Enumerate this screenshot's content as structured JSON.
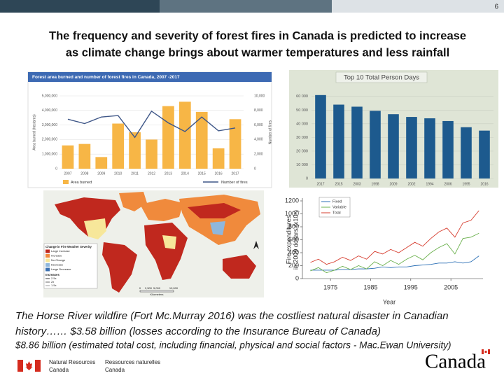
{
  "page_number": "6",
  "title": [
    "The frequency and severity of forest fires in Canada is predicted to increase",
    "as climate change brings about warmer temperatures and less rainfall"
  ],
  "charts": [
    {
      "type": "bar_line",
      "title": "Forest area burned and number of forest fires in Canada, 2007 -2017",
      "categories": [
        "2007",
        "2008",
        "2009",
        "2010",
        "2011",
        "2012",
        "2013",
        "2014",
        "2015",
        "2016",
        "2017"
      ],
      "y_label": "Area burned (hectares)",
      "y2_label": "Number of fires",
      "ylim": [
        0,
        5000000
      ],
      "yticks": [
        0,
        {
          "value": 1000000,
          "label": "1,000,000"
        },
        {
          "value": 2000000,
          "label": "2,000,000"
        },
        {
          "value": 3000000,
          "label": "3,000,000"
        },
        {
          "value": 4000000,
          "label": "4,000,000"
        },
        {
          "value": 5000000,
          "label": "5,000,000"
        }
      ],
      "y2lim": [
        0,
        10000
      ],
      "y2ticks": [
        0,
        {
          "value": 2000,
          "label": "2,000"
        },
        {
          "value": 4000,
          "label": "4,000"
        },
        {
          "value": 6000,
          "label": "6,000"
        },
        {
          "value": 8000,
          "label": "8,000"
        },
        {
          "value": 10000,
          "label": "10,000"
        }
      ],
      "series": [
        {
          "name": "Area burned",
          "type": "bar",
          "color": "#f7b646",
          "values": [
            1600000,
            1700000,
            800000,
            3100000,
            2500000,
            2000000,
            4300000,
            4600000,
            3900000,
            1400000,
            3400000
          ]
        },
        {
          "name": "Number of fires",
          "type": "line",
          "axis": "y2",
          "color": "#3e5687",
          "values": [
            6800,
            6200,
            7100,
            7300,
            4300,
            7900,
            6300,
            5100,
            7100,
            5200,
            5600
          ]
        }
      ]
    },
    {
      "type": "bar",
      "title": "Top 10 Total Person Days",
      "categories": [
        "2017",
        "2015",
        "2003",
        "1998",
        "2009",
        "2002",
        "1994",
        "2006",
        "1995",
        "2016"
      ],
      "values": [
        61000,
        54000,
        52500,
        49500,
        47000,
        45000,
        44000,
        42000,
        37500,
        35000
      ],
      "color": "#1d5a8e",
      "ylim": [
        0,
        65000
      ],
      "yticks": [
        0,
        {
          "value": 10000,
          "label": "10 000"
        },
        {
          "value": 20000,
          "label": "20 000"
        },
        {
          "value": 30000,
          "label": "30 000"
        },
        {
          "value": 40000,
          "label": "40 000"
        },
        {
          "value": 50000,
          "label": "50 000"
        },
        {
          "value": 60000,
          "label": "60 000"
        }
      ],
      "grid": true
    },
    {
      "type": "map",
      "legend_title": "Change in Fire Weather Severity",
      "legend_items": [
        {
          "name": "Large Increase",
          "color": "#c0281e"
        },
        {
          "name": "Increase",
          "color": "#f08a3c"
        },
        {
          "name": "No Change",
          "color": "#f7e79a"
        },
        {
          "name": "Decrease",
          "color": "#8fb7dc"
        },
        {
          "name": "Large Decrease",
          "color": "#3a6fb0"
        }
      ],
      "increase_title": "Increases",
      "increase_items": [
        "2.5x",
        "2x",
        "1.5x"
      ],
      "scale_labels": [
        "0",
        "2,500",
        "5,000",
        "10,000"
      ],
      "scale_unit": "Kilometers"
    },
    {
      "type": "line",
      "x_label": "Year",
      "y_label": [
        "Fire expenditures",
        "in 2009 dollars (x10⁶)"
      ],
      "x": [
        1970,
        1972,
        1974,
        1976,
        1978,
        1980,
        1982,
        1984,
        1986,
        1988,
        1990,
        1992,
        1994,
        1996,
        1998,
        2000,
        2002,
        2004,
        2006,
        2008,
        2010,
        2012
      ],
      "xlim": [
        1968,
        2013
      ],
      "xticks": [
        1975,
        1985,
        1995,
        2005
      ],
      "ylim": [
        0,
        1200
      ],
      "yticks": [
        0,
        200,
        400,
        600,
        800,
        1000,
        1200
      ],
      "series": [
        {
          "name": "Fixed",
          "color": "#2b6fb5",
          "values": [
            130,
            130,
            130,
            130,
            140,
            140,
            150,
            150,
            160,
            180,
            170,
            180,
            180,
            200,
            210,
            220,
            240,
            240,
            260,
            240,
            260,
            350
          ]
        },
        {
          "name": "Variable",
          "color": "#6ab04c",
          "values": [
            120,
            170,
            90,
            130,
            190,
            140,
            200,
            150,
            260,
            200,
            280,
            220,
            300,
            360,
            290,
            400,
            480,
            540,
            380,
            620,
            640,
            700
          ]
        },
        {
          "name": "Total",
          "color": "#d63c2e",
          "values": [
            250,
            300,
            220,
            260,
            330,
            280,
            350,
            300,
            420,
            380,
            450,
            400,
            480,
            560,
            500,
            620,
            720,
            780,
            640,
            860,
            900,
            1050
          ]
        }
      ]
    }
  ],
  "body": {
    "lines": [
      "The Horse River wildfire (Fort Mc.Murray 2016) was the costliest natural disaster in Canadian",
      "history…… $3.58 billion (losses according to the Insurance Bureau of Canada)",
      "$8.86 billion (estimated total cost, including financial, physical and social factors - Mac.Ewan University)"
    ]
  },
  "footer": {
    "department_en": [
      "Natural Resources",
      "Canada"
    ],
    "department_fr": [
      "Ressources naturelles",
      "Canada"
    ],
    "wordmark": "Canada"
  }
}
